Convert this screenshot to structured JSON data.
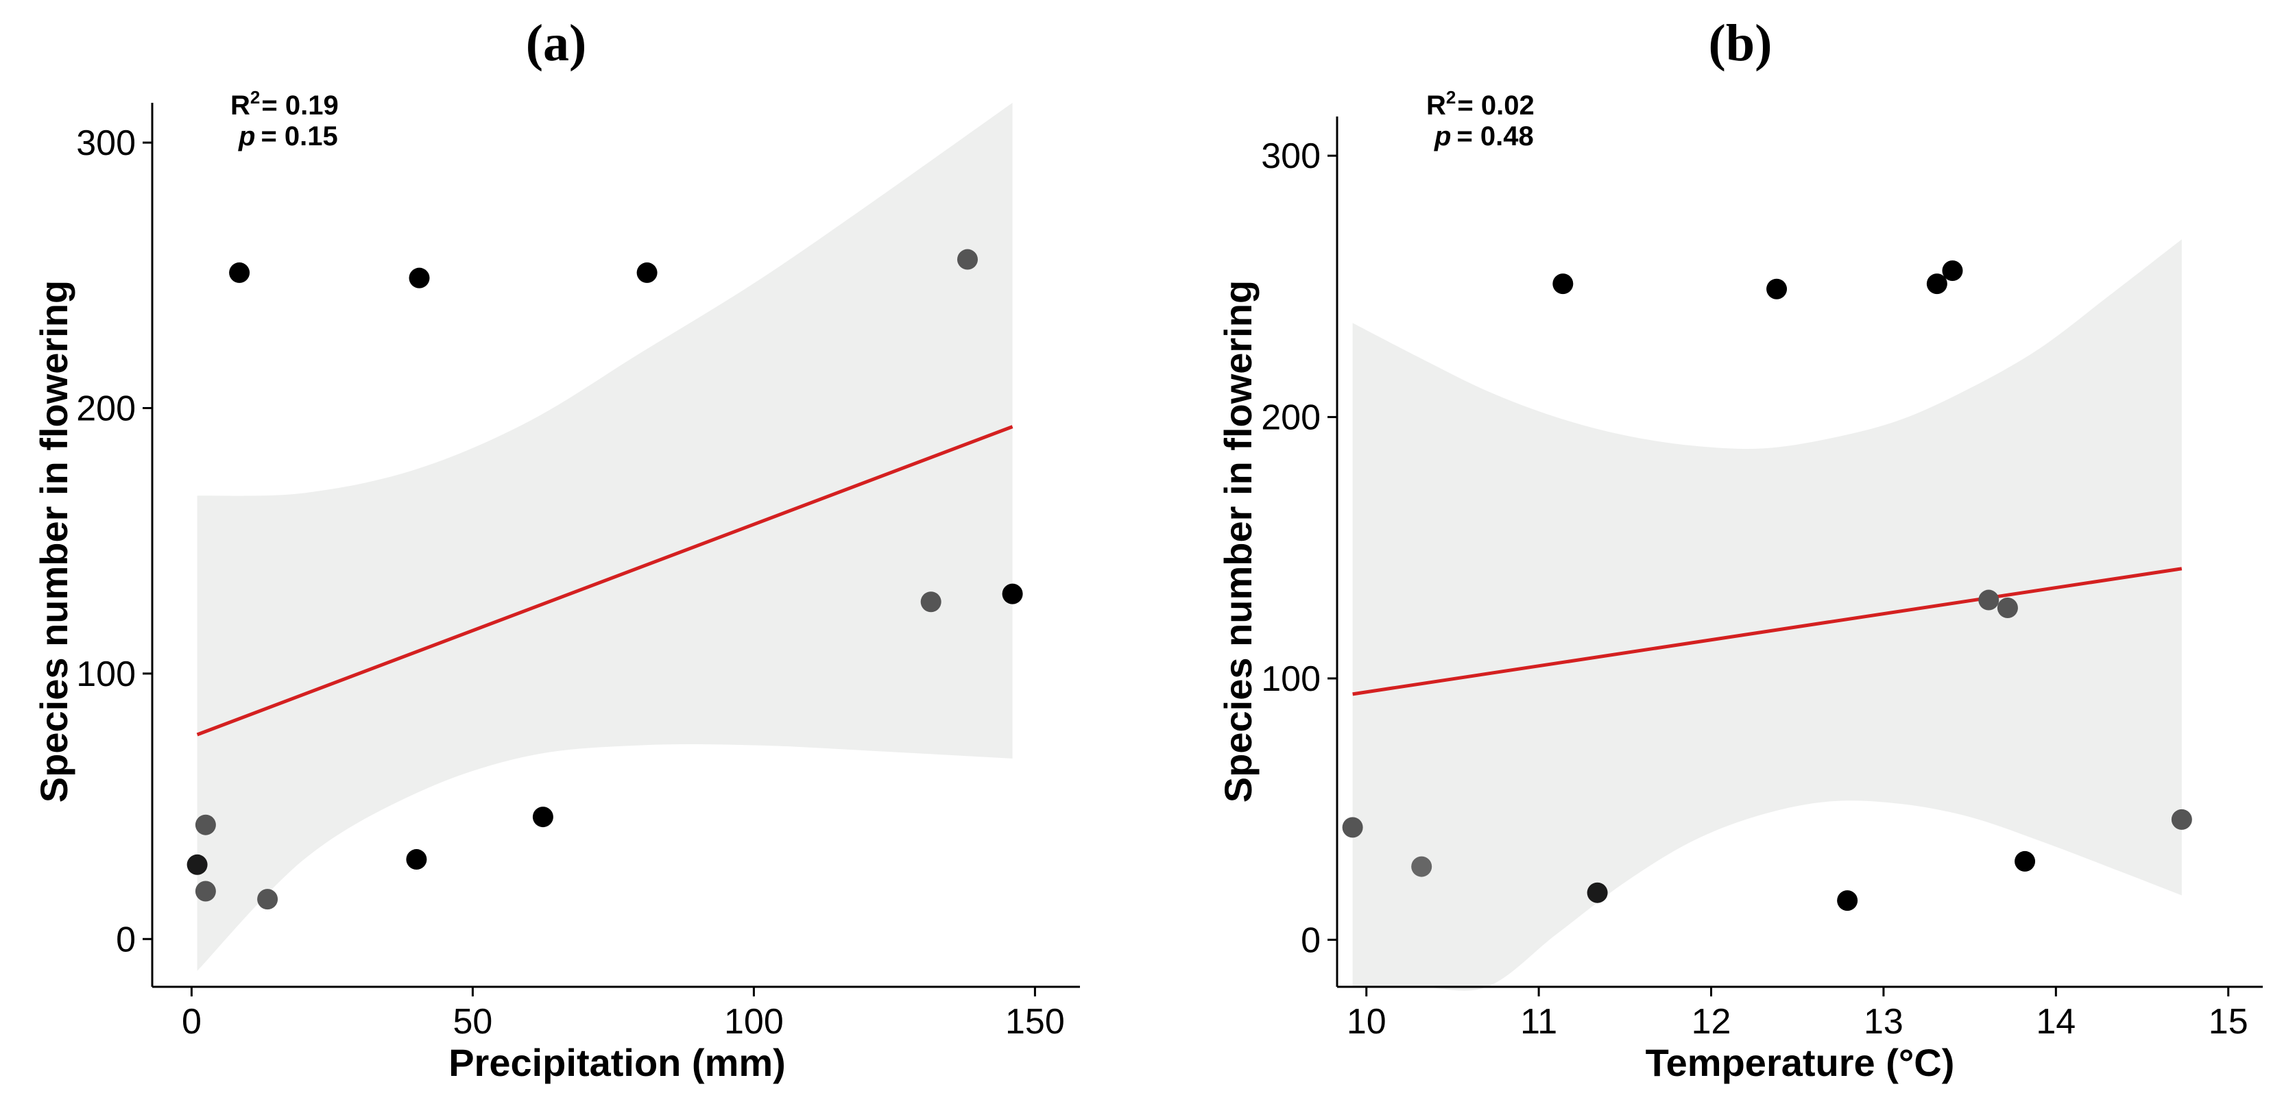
{
  "chart_data": [
    {
      "type": "scatter",
      "panel_label": "(a)",
      "xlabel": "Precipitation (mm)",
      "ylabel": "Species number in flowering",
      "xlim": [
        -7,
        158
      ],
      "ylim": [
        -18,
        315
      ],
      "xticks": [
        0,
        50,
        100,
        150
      ],
      "yticks": [
        0,
        100,
        200,
        300
      ],
      "stats": {
        "r2_label": "R",
        "r2_sup": "2",
        "r2_value": "= 0.19",
        "p_label": "p",
        "p_value": "= 0.15"
      },
      "points": [
        {
          "x": 1,
          "y": 28,
          "shade": "#1a1a1a"
        },
        {
          "x": 2.5,
          "y": 43,
          "shade": "#555555"
        },
        {
          "x": 2.5,
          "y": 18,
          "shade": "#555555"
        },
        {
          "x": 8.5,
          "y": 251,
          "shade": "#000000"
        },
        {
          "x": 13.5,
          "y": 15,
          "shade": "#555555"
        },
        {
          "x": 40,
          "y": 30,
          "shade": "#000000"
        },
        {
          "x": 40.5,
          "y": 249,
          "shade": "#000000"
        },
        {
          "x": 62.5,
          "y": 46,
          "shade": "#000000"
        },
        {
          "x": 81,
          "y": 251,
          "shade": "#000000"
        },
        {
          "x": 131.5,
          "y": 127,
          "shade": "#555555"
        },
        {
          "x": 138,
          "y": 256,
          "shade": "#555555"
        },
        {
          "x": 146,
          "y": 130,
          "shade": "#000000"
        }
      ],
      "fit_line": {
        "x": [
          1,
          146
        ],
        "y": [
          77,
          193
        ],
        "color": "#d42020"
      },
      "ci_band": {
        "x": [
          1,
          20,
          40,
          60,
          80,
          100,
          120,
          146
        ],
        "upper": [
          167,
          168,
          177,
          195,
          221,
          247,
          276,
          316
        ],
        "lower": [
          -12,
          30,
          55,
          69,
          73,
          73,
          71,
          68
        ],
        "color": "#eeefee"
      }
    },
    {
      "type": "scatter",
      "panel_label": "(b)",
      "xlabel": "Temperature (°C)",
      "ylabel": "Species number in flowering",
      "xlim": [
        9.83,
        15.2
      ],
      "ylim": [
        -18,
        315
      ],
      "xticks": [
        10,
        11,
        12,
        13,
        14,
        15
      ],
      "yticks": [
        0,
        100,
        200,
        300
      ],
      "stats": {
        "r2_label": "R",
        "r2_sup": "2",
        "r2_value": "= 0.02",
        "p_label": "p",
        "p_value": "= 0.48"
      },
      "points": [
        {
          "x": 9.92,
          "y": 43,
          "shade": "#555555"
        },
        {
          "x": 10.32,
          "y": 28,
          "shade": "#666666"
        },
        {
          "x": 11.14,
          "y": 251,
          "shade": "#000000"
        },
        {
          "x": 11.34,
          "y": 18,
          "shade": "#1a1a1a"
        },
        {
          "x": 12.38,
          "y": 249,
          "shade": "#000000"
        },
        {
          "x": 12.79,
          "y": 15,
          "shade": "#000000"
        },
        {
          "x": 13.31,
          "y": 251,
          "shade": "#000000"
        },
        {
          "x": 13.4,
          "y": 256,
          "shade": "#000000"
        },
        {
          "x": 13.61,
          "y": 130,
          "shade": "#555555"
        },
        {
          "x": 13.72,
          "y": 127,
          "shade": "#555555"
        },
        {
          "x": 13.82,
          "y": 30,
          "shade": "#000000"
        },
        {
          "x": 14.73,
          "y": 46,
          "shade": "#555555"
        }
      ],
      "fit_line": {
        "x": [
          9.92,
          14.73
        ],
        "y": [
          94,
          142
        ],
        "color": "#d42020"
      },
      "ci_band": {
        "x": [
          9.92,
          10.3,
          10.7,
          11.1,
          11.5,
          11.9,
          12.3,
          12.7,
          13.1,
          13.5,
          13.9,
          14.3,
          14.73
        ],
        "upper": [
          236,
          223,
          210,
          200,
          193,
          189,
          188,
          192,
          199,
          211,
          226,
          246,
          268
        ],
        "lower": [
          -48,
          -36,
          -20,
          2,
          22,
          38,
          48,
          53,
          52,
          47,
          38,
          28,
          17
        ],
        "color": "#eeefee"
      }
    }
  ]
}
